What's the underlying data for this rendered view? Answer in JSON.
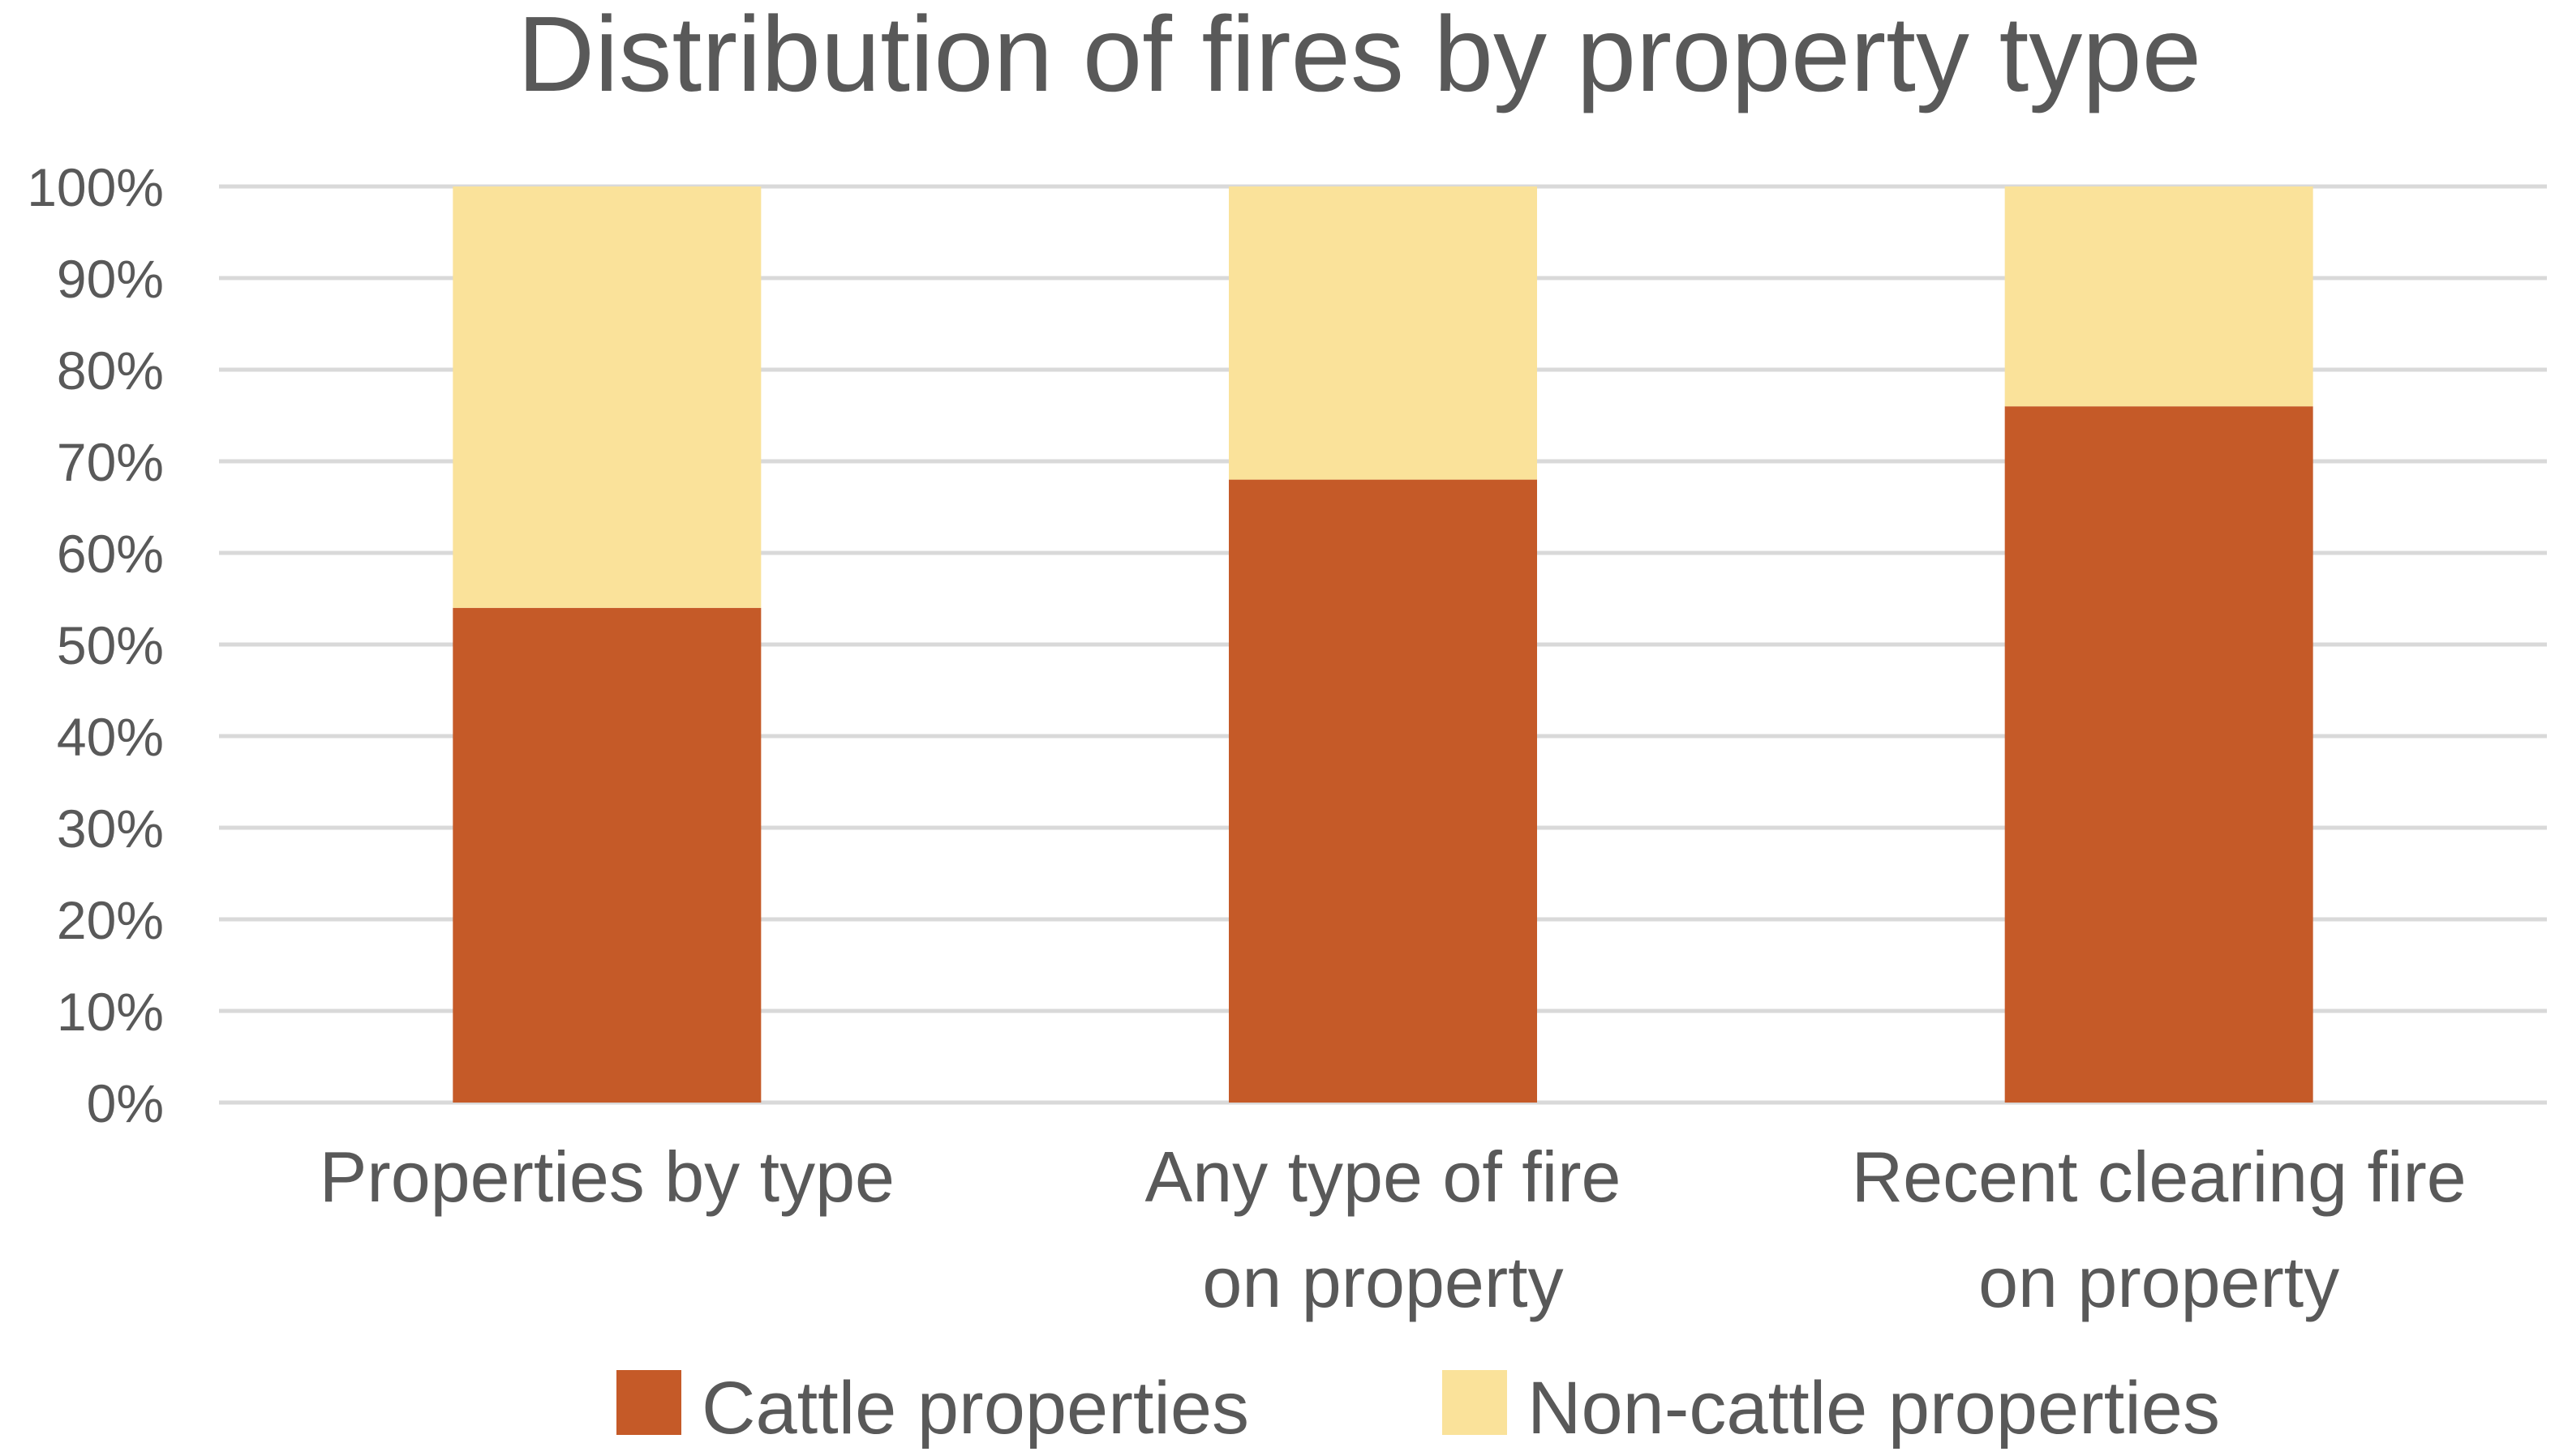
{
  "chart_data": {
    "type": "bar",
    "stacked": true,
    "title": "Distribution of fires by property type",
    "xlabel": "",
    "ylabel": "",
    "categories": [
      [
        "Properties by type"
      ],
      [
        "Any type of fire",
        "on property"
      ],
      [
        "Recent clearing fire",
        "on property"
      ]
    ],
    "series": [
      {
        "name": "Cattle properties",
        "values": [
          54,
          68,
          76
        ],
        "color": "#C55A28"
      },
      {
        "name": "Non-cattle properties",
        "values": [
          46,
          32,
          24
        ],
        "color": "#FAE29A"
      }
    ],
    "ylim": [
      0,
      100
    ],
    "yticks": [
      "0%",
      "10%",
      "20%",
      "30%",
      "40%",
      "50%",
      "60%",
      "70%",
      "80%",
      "90%",
      "100%"
    ],
    "grid": true,
    "legend_position": "bottom",
    "colors": {
      "gridline": "#D9D9D9",
      "text": "#595959"
    }
  }
}
